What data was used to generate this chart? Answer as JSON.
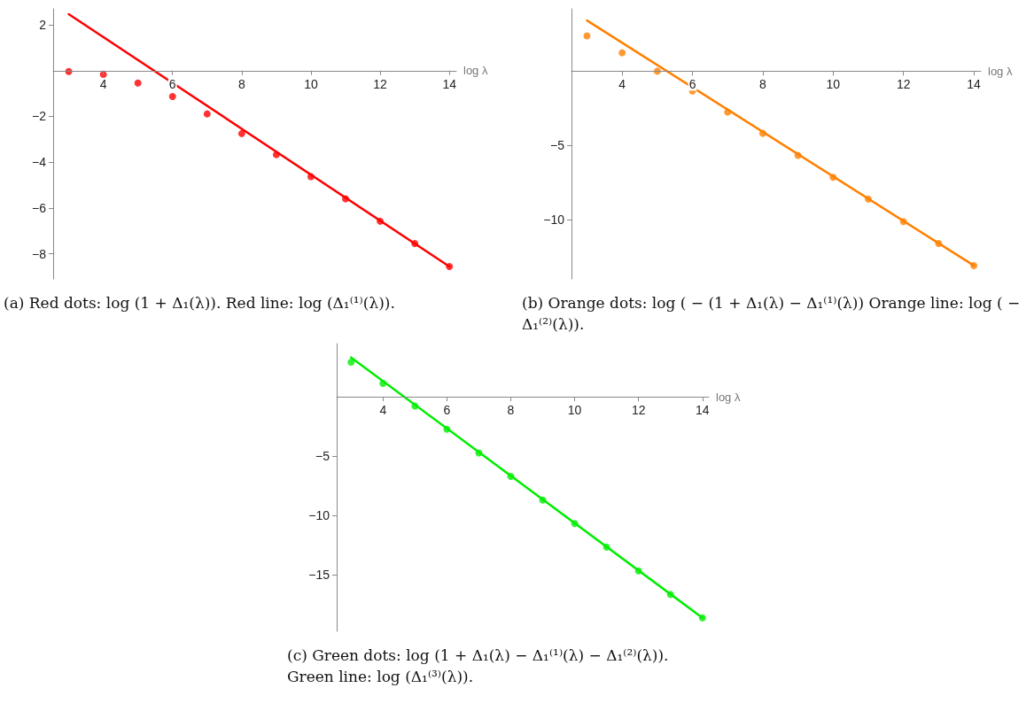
{
  "chart_data": [
    {
      "type": "scatter",
      "xlabel": "log λ",
      "xlim": [
        2.55,
        14.2
      ],
      "xticks": [
        4,
        6,
        8,
        10,
        12,
        14
      ],
      "ylim": [
        -9.1,
        2.7
      ],
      "yticks": [
        -8,
        -6,
        -4,
        -2,
        2
      ],
      "grid": false,
      "annotations": [
        "(a) Red dots: log (1 + Δ₁(λ)). Red line: log (Δ₁⁽¹⁾(λ))."
      ],
      "series": [
        {
          "marker": "circle",
          "color": "#ff0000",
          "x": [
            3,
            4,
            5,
            6,
            7,
            8,
            9,
            10,
            11,
            12,
            13,
            14
          ],
          "values": [
            -0.04,
            -0.17,
            -0.54,
            -1.13,
            -1.89,
            -2.75,
            -3.67,
            -4.63,
            -5.6,
            -6.58,
            -7.55,
            -8.56
          ]
        },
        {
          "type": "line",
          "marker": "none",
          "line_style": "solid",
          "color": "#ff0000",
          "x": [
            3,
            14
          ],
          "values": [
            2.47,
            -8.56
          ]
        }
      ]
    },
    {
      "type": "scatter",
      "xlabel": "log λ",
      "xlim": [
        2.56,
        14.2
      ],
      "xticks": [
        4,
        6,
        8,
        10,
        12,
        14
      ],
      "ylim": [
        -14,
        4.2
      ],
      "yticks": [
        -10,
        -5
      ],
      "grid": false,
      "annotations": [
        "(b) Orange dots: log ( − (1 + Δ₁(λ) − Δ₁⁽¹⁾(λ)) Orange line: log ( − Δ₁⁽²⁾(λ))."
      ],
      "series": [
        {
          "marker": "circle",
          "color": "#ff8000",
          "x": [
            3,
            4,
            5,
            6,
            7,
            8,
            9,
            10,
            11,
            12,
            13,
            14
          ],
          "values": [
            2.38,
            1.24,
            0,
            -1.33,
            -2.76,
            -4.19,
            -5.68,
            -7.15,
            -8.62,
            -10.14,
            -11.61,
            -13.1
          ]
        },
        {
          "type": "line",
          "marker": "none",
          "line_style": "solid",
          "color": "#ff8000",
          "x": [
            3,
            14
          ],
          "values": [
            3.42,
            -13.1
          ]
        }
      ]
    },
    {
      "type": "scatter",
      "xlabel": "log λ",
      "xlim": [
        2.55,
        14.2
      ],
      "xticks": [
        4,
        6,
        8,
        10,
        12,
        14
      ],
      "ylim": [
        -19.8,
        4.5
      ],
      "yticks": [
        -15,
        -10,
        -5
      ],
      "grid": false,
      "annotations": [
        "(c) Green dots: log (1 + Δ₁(λ) − Δ₁⁽¹⁾(λ) − Δ₁⁽²⁾(λ)).",
        "Green line: log (Δ₁⁽³⁾(λ))."
      ],
      "series": [
        {
          "marker": "circle",
          "color": "#00ee00",
          "x": [
            3,
            4,
            5,
            6,
            7,
            8,
            9,
            10,
            11,
            12,
            13,
            14
          ],
          "values": [
            2.93,
            1.13,
            -0.78,
            -2.74,
            -4.73,
            -6.72,
            -8.71,
            -10.7,
            -12.69,
            -14.7,
            -16.69,
            -18.66
          ]
        },
        {
          "type": "line",
          "marker": "none",
          "line_style": "solid",
          "color": "#00ee00",
          "x": [
            3,
            14
          ],
          "values": [
            3.33,
            -18.66
          ]
        }
      ]
    }
  ]
}
